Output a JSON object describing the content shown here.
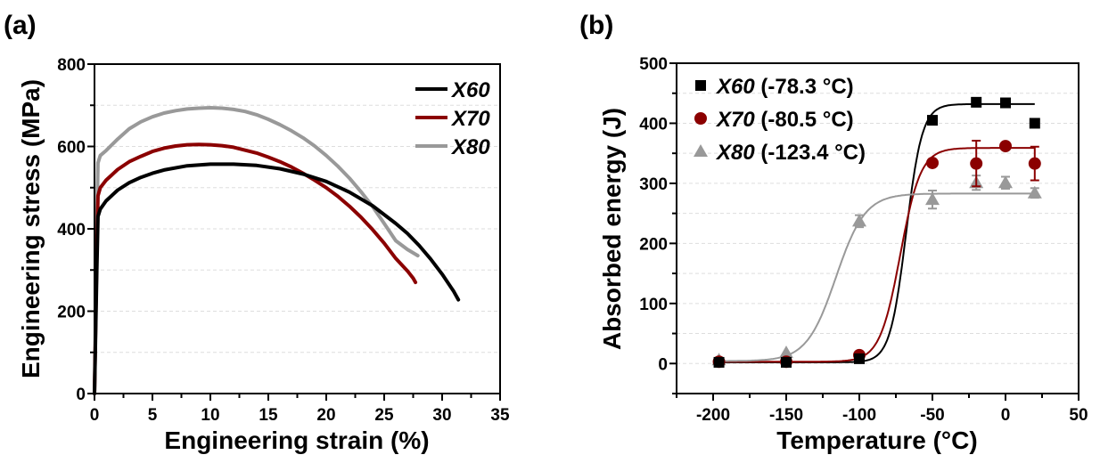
{
  "chart_data": [
    {
      "panel_label": "(a)",
      "type": "line",
      "xlabel": "Engineering strain (%)",
      "ylabel": "Engineering stress (MPa)",
      "xlim": [
        0,
        35
      ],
      "ylim": [
        0,
        800
      ],
      "xticks": [
        "0",
        "5",
        "10",
        "15",
        "20",
        "25",
        "30",
        "35"
      ],
      "yticks": [
        "0",
        "200",
        "400",
        "600",
        "800"
      ],
      "grid": "horizontal dashed",
      "legend_position": "top-right",
      "series": [
        {
          "name": "X60",
          "color": "#000000",
          "x": [
            0,
            0.1,
            0.2,
            0.3,
            0.5,
            1,
            2,
            3,
            4,
            5,
            6,
            8,
            10,
            12,
            14,
            16,
            18,
            20,
            22,
            24,
            26,
            27,
            28,
            29,
            30,
            31,
            31.4
          ],
          "y": [
            0,
            150,
            300,
            430,
            448,
            468,
            494,
            512,
            525,
            535,
            543,
            553,
            557,
            557,
            554,
            546,
            533,
            515,
            489,
            456,
            413,
            389,
            360,
            327,
            290,
            248,
            228
          ]
        },
        {
          "name": "X70",
          "color": "#8b0000",
          "x": [
            0,
            0.1,
            0.2,
            0.3,
            0.5,
            1,
            2,
            3,
            4,
            5,
            6,
            7,
            8,
            9,
            10,
            11,
            12,
            13,
            14,
            15,
            16,
            17,
            18,
            19,
            20,
            21,
            22,
            23,
            24,
            25,
            26,
            27,
            27.5,
            27.7
          ],
          "y": [
            0,
            170,
            340,
            480,
            500,
            518,
            544,
            563,
            576,
            588,
            596,
            601,
            604,
            605,
            604,
            602,
            598,
            591,
            584,
            574,
            563,
            550,
            535,
            518,
            500,
            479,
            455,
            428,
            398,
            365,
            328,
            298,
            280,
            270
          ]
        },
        {
          "name": "X80",
          "color": "#999999",
          "x": [
            0,
            0.1,
            0.2,
            0.3,
            0.5,
            1,
            2,
            3,
            4,
            5,
            6,
            7,
            8,
            9,
            10,
            11,
            12,
            13,
            14,
            15,
            16,
            17,
            18,
            19,
            20,
            21,
            22,
            23,
            24,
            25,
            26,
            27,
            27.9
          ],
          "y": [
            0,
            200,
            400,
            560,
            578,
            590,
            618,
            643,
            660,
            672,
            681,
            687,
            691,
            693,
            694,
            693,
            690,
            685,
            677,
            666,
            653,
            638,
            621,
            601,
            578,
            552,
            523,
            490,
            454,
            413,
            371,
            350,
            335
          ]
        }
      ]
    },
    {
      "panel_label": "(b)",
      "type": "scatter",
      "xlabel": "Temperature (°C)",
      "ylabel": "Absorbed energy (J)",
      "xlim": [
        -225,
        50
      ],
      "ylim": [
        -50,
        500
      ],
      "xticks": [
        "-200",
        "-150",
        "-100",
        "-50",
        "0",
        "50"
      ],
      "yticks": [
        "0",
        "100",
        "200",
        "300",
        "400",
        "500"
      ],
      "grid": "horizontal dashed",
      "legend_position": "top-left",
      "series": [
        {
          "name": "X60",
          "legend_suffix": "(-78.3 °C)",
          "marker": "square",
          "color": "#000000",
          "x": [
            -196,
            -150,
            -100,
            -50,
            -20,
            0,
            20
          ],
          "y": [
            2,
            2,
            8,
            405,
            435,
            434,
            400
          ],
          "err": [
            0,
            0,
            0,
            0,
            0,
            0,
            0
          ],
          "fit": {
            "lower": 2,
            "upper": 432,
            "t0": -68,
            "width": 5.5
          }
        },
        {
          "name": "X70",
          "legend_suffix": "(-80.5 °C)",
          "marker": "circle",
          "color": "#8b0000",
          "x": [
            -196,
            -150,
            -100,
            -50,
            -20,
            0,
            20
          ],
          "y": [
            3,
            3,
            14,
            334,
            333,
            362,
            333
          ],
          "err": [
            0,
            0,
            0,
            0,
            38,
            0,
            28
          ],
          "fit": {
            "lower": 3,
            "upper": 359,
            "t0": -72,
            "width": 7
          }
        },
        {
          "name": "X80",
          "legend_suffix": "(-123.4 °C)",
          "marker": "triangle",
          "color": "#999999",
          "x": [
            -196,
            -150,
            -100,
            -50,
            -20,
            0,
            20
          ],
          "y": [
            6,
            18,
            237,
            273,
            301,
            301,
            284
          ],
          "err": [
            0,
            0,
            10,
            15,
            12,
            10,
            8
          ],
          "fit": {
            "lower": 4,
            "upper": 283,
            "t0": -116,
            "width": 10
          }
        }
      ]
    }
  ]
}
